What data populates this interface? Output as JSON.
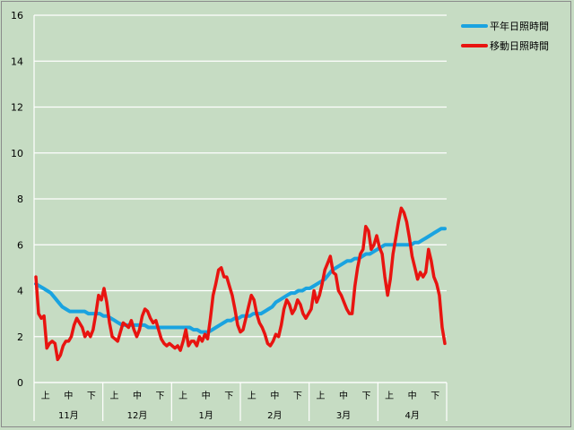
{
  "chart_data": {
    "type": "line",
    "title": "",
    "xlabel": "",
    "ylabel": "",
    "ylim": [
      0,
      16
    ],
    "yticks": [
      0,
      2,
      4,
      6,
      8,
      10,
      12,
      14,
      16
    ],
    "grid": true,
    "legend_position": "top-right",
    "month_labels": [
      "11月",
      "12月",
      "1月",
      "2月",
      "3月",
      "4月"
    ],
    "period_labels": [
      "上",
      "中",
      "下"
    ],
    "series": [
      {
        "name": "平年日照時間",
        "color": "#1aa3e0",
        "values": [
          4.3,
          4.2,
          4.1,
          4.0,
          3.9,
          3.7,
          3.5,
          3.3,
          3.2,
          3.1,
          3.1,
          3.1,
          3.1,
          3.1,
          3.0,
          3.0,
          3.0,
          3.0,
          2.9,
          2.9,
          2.8,
          2.7,
          2.6,
          2.5,
          2.5,
          2.5,
          2.5,
          2.5,
          2.5,
          2.5,
          2.4,
          2.4,
          2.4,
          2.4,
          2.4,
          2.4,
          2.4,
          2.4,
          2.4,
          2.4,
          2.4,
          2.4,
          2.3,
          2.3,
          2.2,
          2.2,
          2.2,
          2.3,
          2.4,
          2.5,
          2.6,
          2.7,
          2.7,
          2.8,
          2.8,
          2.9,
          2.9,
          2.9,
          3.0,
          3.0,
          3.0,
          3.1,
          3.2,
          3.3,
          3.5,
          3.6,
          3.7,
          3.8,
          3.9,
          3.9,
          4.0,
          4.0,
          4.1,
          4.1,
          4.2,
          4.3,
          4.4,
          4.5,
          4.7,
          4.9,
          5.0,
          5.1,
          5.2,
          5.3,
          5.3,
          5.4,
          5.4,
          5.5,
          5.6,
          5.6,
          5.7,
          5.8,
          5.9,
          6.0,
          6.0,
          6.0,
          6.0,
          6.0,
          6.0,
          6.0,
          6.0,
          6.1,
          6.1,
          6.2,
          6.3,
          6.4,
          6.5,
          6.6,
          6.7,
          6.7
        ]
      },
      {
        "name": "移動日照時間",
        "color": "#e81410",
        "values": [
          4.6,
          3.0,
          2.8,
          2.9,
          1.5,
          1.7,
          1.8,
          1.7,
          1.0,
          1.2,
          1.6,
          1.8,
          1.8,
          2.0,
          2.5,
          2.8,
          2.6,
          2.4,
          2.0,
          2.2,
          2.0,
          2.3,
          3.0,
          3.8,
          3.6,
          4.1,
          3.5,
          2.6,
          2.0,
          1.9,
          1.8,
          2.2,
          2.6,
          2.5,
          2.4,
          2.7,
          2.3,
          2.0,
          2.3,
          2.9,
          3.2,
          3.1,
          2.8,
          2.6,
          2.7,
          2.3,
          1.9,
          1.7,
          1.6,
          1.7,
          1.6,
          1.5,
          1.6,
          1.4,
          1.8,
          2.3,
          1.6,
          1.8,
          1.8,
          1.6,
          2.0,
          1.8,
          2.1,
          1.9,
          2.8,
          3.8,
          4.3,
          4.9,
          5.0,
          4.6,
          4.6,
          4.2,
          3.8,
          3.2,
          2.5,
          2.2,
          2.3,
          2.8,
          3.3,
          3.8,
          3.6,
          3.0,
          2.6,
          2.4,
          2.1,
          1.7,
          1.6,
          1.8,
          2.1,
          2.0,
          2.5,
          3.2,
          3.6,
          3.4,
          3.0,
          3.2,
          3.6,
          3.4,
          3.0,
          2.8,
          3.0,
          3.2,
          4.0,
          3.5,
          3.8,
          4.3,
          4.9,
          5.2,
          5.5,
          4.8,
          4.7,
          4.0,
          3.8,
          3.5,
          3.2,
          3.0,
          3.0,
          4.2,
          5.0,
          5.6,
          5.8,
          6.8,
          6.6,
          5.8,
          6.0,
          6.4,
          5.9,
          5.6,
          4.6,
          3.8,
          4.5,
          5.6,
          6.3,
          7.0,
          7.6,
          7.4,
          7.0,
          6.3,
          5.5,
          5.0,
          4.5,
          4.8,
          4.6,
          4.8,
          5.8,
          5.3,
          4.6,
          4.3,
          3.8,
          2.4,
          1.7
        ]
      }
    ]
  }
}
